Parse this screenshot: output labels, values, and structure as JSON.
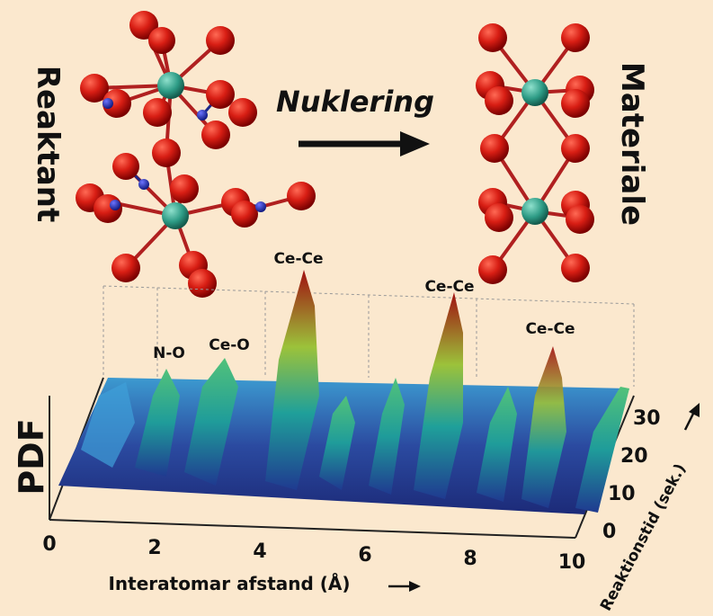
{
  "header": {
    "reactant": "Reaktant",
    "process": "Nuklering",
    "product": "Materiale"
  },
  "plot": {
    "y_label": "PDF",
    "x_label": "Interatomar afstand (Å)",
    "x_ticks": [
      "0",
      "2",
      "4",
      "6",
      "8",
      "10"
    ],
    "time_label": "Reaktionstid (sek.)",
    "time_ticks": [
      "0",
      "10",
      "20",
      "30"
    ],
    "peaks": [
      "N-O",
      "Ce-O",
      "Ce-Ce",
      "Ce-Ce",
      "Ce-Ce"
    ]
  }
}
